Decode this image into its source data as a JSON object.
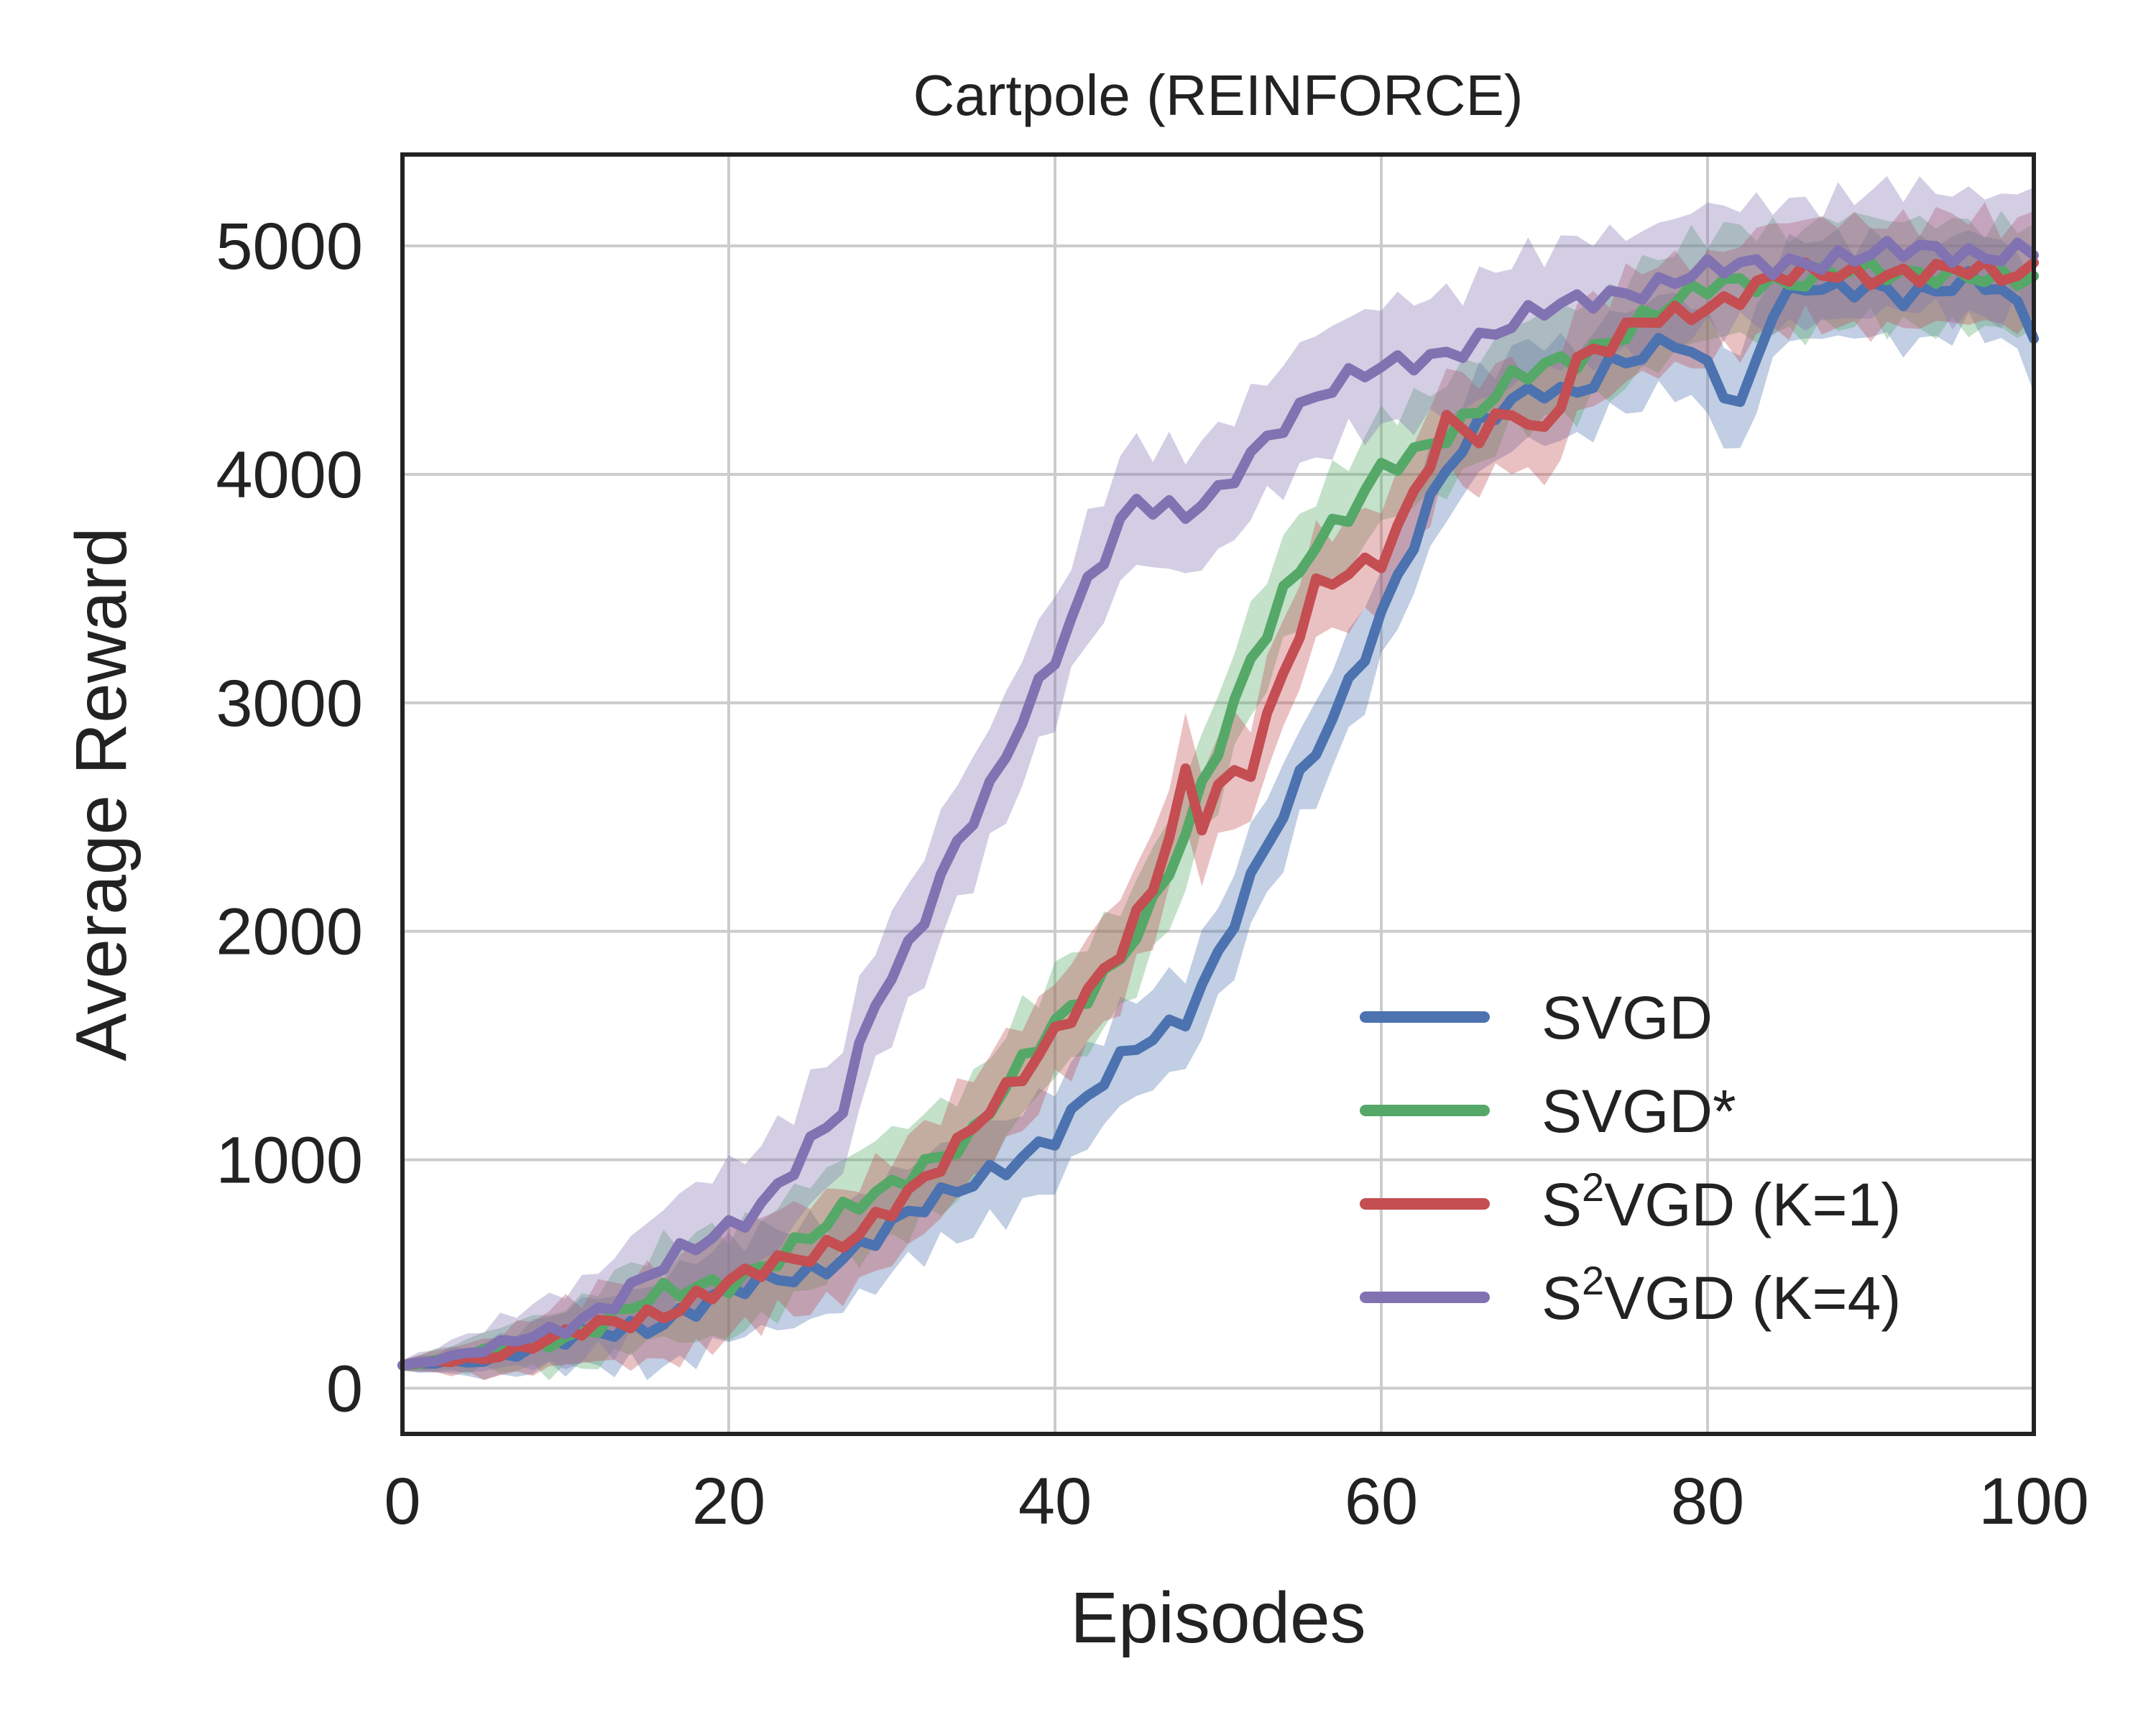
{
  "chart_data": {
    "type": "line",
    "title": "Cartpole (REINFORCE)",
    "xlabel": "Episodes",
    "ylabel": "Average Reward",
    "xlim": [
      0,
      100
    ],
    "ylim": [
      -200,
      5400
    ],
    "xticks": [
      0,
      20,
      40,
      60,
      80,
      100
    ],
    "yticks": [
      0,
      1000,
      2000,
      3000,
      4000,
      5000
    ],
    "xtick_labels": [
      "0",
      "20",
      "40",
      "60",
      "80",
      "100"
    ],
    "ytick_labels": [
      "0",
      "1000",
      "2000",
      "3000",
      "4000",
      "5000"
    ],
    "grid": true,
    "legend_position": "bottom-right",
    "shaded_band": "variability band around each series",
    "series": [
      {
        "name": "SVGD",
        "label_main": "SVGD",
        "label_sup": "",
        "label_rest": "",
        "color": "#4c72b0",
        "band": 240,
        "points": [
          [
            0,
            100
          ],
          [
            5,
            130
          ],
          [
            10,
            200
          ],
          [
            15,
            290
          ],
          [
            20,
            400
          ],
          [
            25,
            520
          ],
          [
            30,
            700
          ],
          [
            33,
            820
          ],
          [
            36,
            960
          ],
          [
            40,
            1100
          ],
          [
            42,
            1250
          ],
          [
            45,
            1500
          ],
          [
            48,
            1650
          ],
          [
            50,
            1900
          ],
          [
            52,
            2200
          ],
          [
            54,
            2500
          ],
          [
            56,
            2800
          ],
          [
            58,
            3100
          ],
          [
            60,
            3400
          ],
          [
            62,
            3700
          ],
          [
            64,
            4000
          ],
          [
            66,
            4200
          ],
          [
            68,
            4350
          ],
          [
            70,
            4400
          ],
          [
            72,
            4350
          ],
          [
            74,
            4450
          ],
          [
            76,
            4500
          ],
          [
            78,
            4600
          ],
          [
            80,
            4500
          ],
          [
            82,
            4300
          ],
          [
            84,
            4700
          ],
          [
            86,
            4800
          ],
          [
            88,
            4800
          ],
          [
            90,
            4850
          ],
          [
            92,
            4800
          ],
          [
            94,
            4800
          ],
          [
            96,
            4820
          ],
          [
            98,
            4800
          ],
          [
            100,
            4650
          ]
        ]
      },
      {
        "name": "SVGD*",
        "label_main": "SVGD*",
        "label_sup": "",
        "label_rest": "",
        "color": "#55a868",
        "band": 260,
        "points": [
          [
            0,
            100
          ],
          [
            5,
            150
          ],
          [
            10,
            230
          ],
          [
            15,
            370
          ],
          [
            20,
            480
          ],
          [
            25,
            650
          ],
          [
            28,
            800
          ],
          [
            30,
            900
          ],
          [
            32,
            1000
          ],
          [
            35,
            1100
          ],
          [
            38,
            1400
          ],
          [
            40,
            1600
          ],
          [
            42,
            1750
          ],
          [
            44,
            1900
          ],
          [
            46,
            2100
          ],
          [
            48,
            2400
          ],
          [
            50,
            2800
          ],
          [
            52,
            3200
          ],
          [
            54,
            3500
          ],
          [
            56,
            3700
          ],
          [
            58,
            3800
          ],
          [
            60,
            4000
          ],
          [
            62,
            4100
          ],
          [
            64,
            4200
          ],
          [
            66,
            4300
          ],
          [
            68,
            4400
          ],
          [
            70,
            4450
          ],
          [
            72,
            4500
          ],
          [
            74,
            4600
          ],
          [
            76,
            4700
          ],
          [
            78,
            4750
          ],
          [
            80,
            4800
          ],
          [
            84,
            4850
          ],
          [
            88,
            4900
          ],
          [
            92,
            4850
          ],
          [
            96,
            4900
          ],
          [
            100,
            4850
          ]
        ]
      },
      {
        "name": "S2VGD (K=1)",
        "label_main": "S",
        "label_sup": "2",
        "label_rest": "VGD (K=1)",
        "color": "#c44e52",
        "band": 260,
        "points": [
          [
            0,
            100
          ],
          [
            5,
            140
          ],
          [
            10,
            220
          ],
          [
            15,
            330
          ],
          [
            20,
            440
          ],
          [
            25,
            600
          ],
          [
            28,
            700
          ],
          [
            30,
            780
          ],
          [
            32,
            880
          ],
          [
            34,
            1050
          ],
          [
            36,
            1250
          ],
          [
            38,
            1400
          ],
          [
            40,
            1550
          ],
          [
            42,
            1700
          ],
          [
            44,
            1900
          ],
          [
            46,
            2200
          ],
          [
            48,
            2700
          ],
          [
            49,
            2500
          ],
          [
            50,
            2650
          ],
          [
            52,
            2700
          ],
          [
            54,
            3100
          ],
          [
            56,
            3500
          ],
          [
            58,
            3600
          ],
          [
            60,
            3650
          ],
          [
            62,
            3900
          ],
          [
            64,
            4200
          ],
          [
            66,
            4150
          ],
          [
            68,
            4300
          ],
          [
            70,
            4200
          ],
          [
            72,
            4500
          ],
          [
            74,
            4550
          ],
          [
            76,
            4650
          ],
          [
            78,
            4700
          ],
          [
            80,
            4750
          ],
          [
            84,
            4850
          ],
          [
            88,
            4870
          ],
          [
            92,
            4900
          ],
          [
            96,
            4880
          ],
          [
            98,
            4850
          ],
          [
            100,
            4900
          ]
        ]
      },
      {
        "name": "S2VGD (K=4)",
        "label_main": "S",
        "label_sup": "2",
        "label_rest": "VGD (K=4)",
        "color": "#8172b2",
        "band": 300,
        "points": [
          [
            0,
            100
          ],
          [
            5,
            160
          ],
          [
            10,
            280
          ],
          [
            14,
            420
          ],
          [
            18,
            620
          ],
          [
            22,
            820
          ],
          [
            25,
            1050
          ],
          [
            27,
            1200
          ],
          [
            28,
            1450
          ],
          [
            29,
            1700
          ],
          [
            30,
            1800
          ],
          [
            32,
            2100
          ],
          [
            34,
            2400
          ],
          [
            36,
            2600
          ],
          [
            38,
            2900
          ],
          [
            40,
            3200
          ],
          [
            42,
            3550
          ],
          [
            44,
            3800
          ],
          [
            45,
            3900
          ],
          [
            46,
            3850
          ],
          [
            48,
            3800
          ],
          [
            50,
            3900
          ],
          [
            52,
            4100
          ],
          [
            54,
            4250
          ],
          [
            56,
            4350
          ],
          [
            58,
            4400
          ],
          [
            60,
            4450
          ],
          [
            62,
            4500
          ],
          [
            64,
            4550
          ],
          [
            66,
            4600
          ],
          [
            68,
            4650
          ],
          [
            70,
            4700
          ],
          [
            74,
            4800
          ],
          [
            78,
            4850
          ],
          [
            82,
            4900
          ],
          [
            86,
            4950
          ],
          [
            90,
            4950
          ],
          [
            94,
            4980
          ],
          [
            100,
            4980
          ]
        ]
      }
    ]
  }
}
